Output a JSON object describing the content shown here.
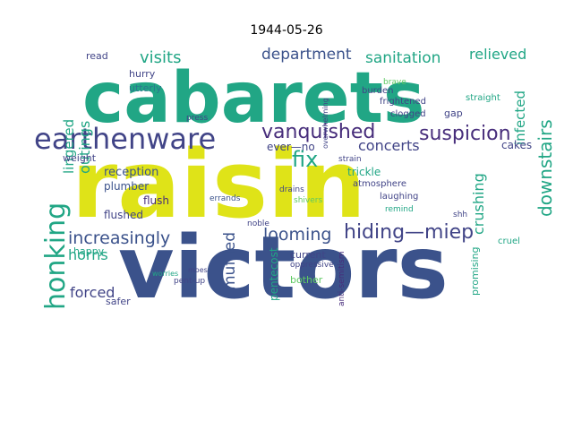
{
  "title": "1944-05-26",
  "colors": {
    "yellow": "#dfe318",
    "teal": "#21a685",
    "blue": "#3b528b",
    "slate": "#414487",
    "purple": "#472d7b",
    "green": "#5ec962",
    "lime": "#a5db36",
    "cyan": "#2a788e"
  },
  "words": [
    {
      "text": "raisin",
      "color": "yellow"
    },
    {
      "text": "cabarets",
      "color": "teal"
    },
    {
      "text": "victors",
      "color": "blue"
    },
    {
      "text": "earthenware",
      "color": "slate"
    },
    {
      "text": "vanquished",
      "color": "purple"
    },
    {
      "text": "suspicion",
      "color": "purple"
    },
    {
      "text": "honking",
      "color": "teal"
    },
    {
      "text": "hiding—miep",
      "color": "slate"
    },
    {
      "text": "increasingly",
      "color": "blue"
    },
    {
      "text": "department",
      "color": "blue"
    },
    {
      "text": "sanitation",
      "color": "teal"
    },
    {
      "text": "visits",
      "color": "teal"
    },
    {
      "text": "concerts",
      "color": "slate"
    },
    {
      "text": "looming",
      "color": "blue"
    },
    {
      "text": "fix",
      "color": "teal"
    },
    {
      "text": "relieved",
      "color": "teal"
    },
    {
      "text": "downstairs",
      "color": "teal"
    },
    {
      "text": "horns",
      "color": "teal"
    },
    {
      "text": "forced",
      "color": "slate"
    },
    {
      "text": "outings",
      "color": "teal"
    },
    {
      "text": "lingered",
      "color": "teal"
    },
    {
      "text": "muffled",
      "color": "blue"
    },
    {
      "text": "crushing",
      "color": "teal"
    },
    {
      "text": "infected",
      "color": "teal"
    },
    {
      "text": "ever—no",
      "color": "slate"
    },
    {
      "text": "reception",
      "color": "blue"
    },
    {
      "text": "plumber",
      "color": "blue"
    },
    {
      "text": "flushed",
      "color": "slate"
    },
    {
      "text": "flush",
      "color": "purple"
    },
    {
      "text": "weight",
      "color": "slate"
    },
    {
      "text": "hurry",
      "color": "slate"
    },
    {
      "text": "utterly",
      "color": "cyan"
    },
    {
      "text": "read",
      "color": "slate"
    },
    {
      "text": "cakes",
      "color": "slate"
    },
    {
      "text": "trickle",
      "color": "teal"
    },
    {
      "text": "pentecost",
      "color": "teal"
    },
    {
      "text": "current",
      "color": "slate"
    },
    {
      "text": "bother",
      "color": "green"
    },
    {
      "text": "happy",
      "color": "teal"
    },
    {
      "text": "safer",
      "color": "slate"
    },
    {
      "text": "atmosphere",
      "color": "slate"
    },
    {
      "text": "laughing",
      "color": "slate"
    },
    {
      "text": "promising",
      "color": "teal"
    },
    {
      "text": "gap",
      "color": "slate"
    },
    {
      "text": "frightened",
      "color": "slate"
    },
    {
      "text": "clogged",
      "color": "slate"
    },
    {
      "text": "burden",
      "color": "slate"
    },
    {
      "text": "straight",
      "color": "teal"
    },
    {
      "text": "brave",
      "color": "green"
    },
    {
      "text": "remind",
      "color": "teal"
    },
    {
      "text": "shivers",
      "color": "green"
    },
    {
      "text": "drains",
      "color": "slate"
    },
    {
      "text": "errands",
      "color": "blue"
    },
    {
      "text": "noble",
      "color": "slate"
    },
    {
      "text": "oppressive",
      "color": "slate"
    },
    {
      "text": "pent-up",
      "color": "slate"
    },
    {
      "text": "cruel",
      "color": "teal"
    },
    {
      "text": "anti-semitism",
      "color": "purple"
    },
    {
      "text": "strain",
      "color": "slate"
    },
    {
      "text": "press",
      "color": "slate"
    },
    {
      "text": "overwhelming",
      "color": "slate"
    },
    {
      "text": "worries",
      "color": "teal"
    },
    {
      "text": "shh",
      "color": "slate"
    },
    {
      "text": "moes",
      "color": "slate"
    }
  ]
}
